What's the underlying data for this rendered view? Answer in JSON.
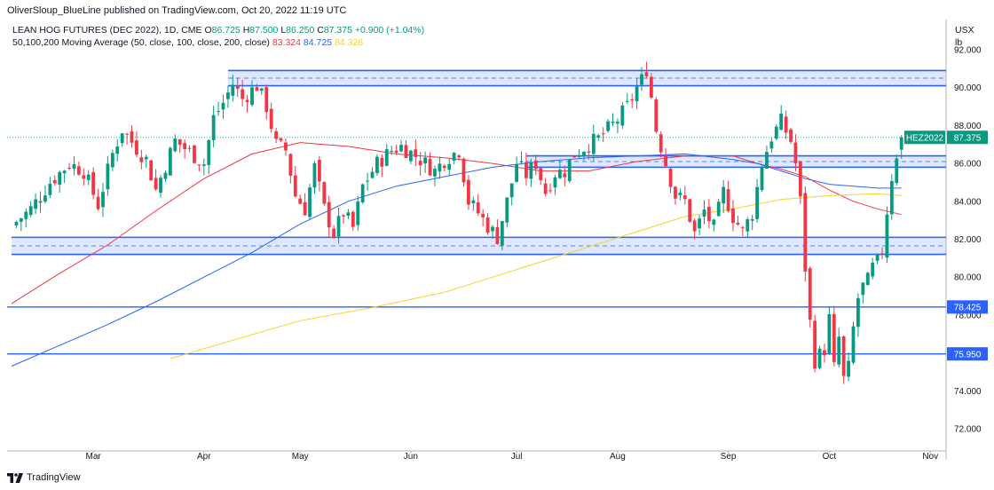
{
  "publisher": "OliverSloup_BlueLine published on TradingView.com, Oct 20, 2022 11:19 UTC",
  "header": {
    "symbol_line": "LEAN HOG FUTURES (DEC 2022), 1D, CME",
    "ohlc": [
      {
        "label": "O",
        "value": "86.725"
      },
      {
        "label": "H",
        "value": "87.500"
      },
      {
        "label": "L",
        "value": "86.250"
      },
      {
        "label": "C",
        "value": "87.375"
      }
    ],
    "change": "+0.900 (+1.04%)",
    "ma_line": "50,100,200 Moving Average (50, close, 100, close, 200, close)",
    "ma50": "83.324",
    "ma100": "84.725",
    "ma200": "84.326"
  },
  "unit": {
    "line1": "USX",
    "line2": "lb"
  },
  "footer": {
    "brand": "TradingView"
  },
  "colors": {
    "up": "#089981",
    "down": "#f23645",
    "ma50": "#f23645",
    "ma100": "#2962ff",
    "ma200": "#f5d32a",
    "zone": "#2962ff"
  },
  "chart_data": {
    "type": "candlestick",
    "title": "LEAN HOG FUTURES (DEC 2022), 1D, CME",
    "y_unit": "USX / lb",
    "ylim": [
      71.2,
      92.6
    ],
    "y_ticks": [
      "72.000",
      "74.000",
      "76.000",
      "78.000",
      "80.000",
      "82.000",
      "84.000",
      "86.000",
      "88.000",
      "90.000",
      "92.000"
    ],
    "x_ticks": [
      {
        "label": "Mar",
        "day": 17
      },
      {
        "label": "Apr",
        "day": 40
      },
      {
        "label": "May",
        "day": 60
      },
      {
        "label": "Jun",
        "day": 83
      },
      {
        "label": "Jul",
        "day": 105
      },
      {
        "label": "Aug",
        "day": 126
      },
      {
        "label": "Sep",
        "day": 149
      },
      {
        "label": "Oct",
        "day": 170
      },
      {
        "label": "Nov",
        "day": 191
      }
    ],
    "close_points": [
      [
        0,
        82.7
      ],
      [
        4,
        83.6
      ],
      [
        8,
        85.0
      ],
      [
        12,
        86.0
      ],
      [
        15,
        85.6
      ],
      [
        18,
        83.8
      ],
      [
        21,
        86.5
      ],
      [
        23,
        87.8
      ],
      [
        26,
        86.8
      ],
      [
        28,
        86.2
      ],
      [
        30,
        84.6
      ],
      [
        34,
        87.2
      ],
      [
        38,
        86.4
      ],
      [
        40,
        86.0
      ],
      [
        42,
        88.4
      ],
      [
        44,
        89.2
      ],
      [
        46,
        90.2
      ],
      [
        48,
        89.4
      ],
      [
        51,
        90.1
      ],
      [
        53,
        89.0
      ],
      [
        55,
        87.0
      ],
      [
        57,
        86.7
      ],
      [
        59,
        84.3
      ],
      [
        61,
        83.6
      ],
      [
        63,
        85.8
      ],
      [
        65,
        83.6
      ],
      [
        67,
        82.3
      ],
      [
        69,
        83.4
      ],
      [
        71,
        82.6
      ],
      [
        73,
        84.8
      ],
      [
        76,
        86.0
      ],
      [
        79,
        86.7
      ],
      [
        81,
        86.9
      ],
      [
        84,
        86.4
      ],
      [
        86,
        86.0
      ],
      [
        88,
        85.6
      ],
      [
        90,
        86.2
      ],
      [
        93,
        86.7
      ],
      [
        95,
        84.0
      ],
      [
        97,
        83.4
      ],
      [
        99,
        82.7
      ],
      [
        101,
        82.1
      ],
      [
        103,
        84.0
      ],
      [
        105,
        86.0
      ],
      [
        107,
        85.4
      ],
      [
        109,
        86.0
      ],
      [
        111,
        84.5
      ],
      [
        113,
        85.5
      ],
      [
        115,
        85.6
      ],
      [
        117,
        86.5
      ],
      [
        120,
        87.0
      ],
      [
        122,
        87.3
      ],
      [
        124,
        87.8
      ],
      [
        126,
        88.3
      ],
      [
        128,
        89.0
      ],
      [
        130,
        90.0
      ],
      [
        131,
        90.4
      ],
      [
        132,
        91.0
      ],
      [
        133,
        89.5
      ],
      [
        134,
        87.8
      ],
      [
        136,
        86.0
      ],
      [
        138,
        84.3
      ],
      [
        140,
        84.0
      ],
      [
        142,
        82.3
      ],
      [
        144,
        83.5
      ],
      [
        146,
        82.6
      ],
      [
        148,
        84.5
      ],
      [
        150,
        83.2
      ],
      [
        152,
        82.4
      ],
      [
        154,
        83.4
      ],
      [
        156,
        86.0
      ],
      [
        158,
        87.4
      ],
      [
        160,
        88.2
      ],
      [
        162,
        87.2
      ],
      [
        163,
        86.0
      ],
      [
        164,
        84.0
      ],
      [
        165,
        80.5
      ],
      [
        166,
        77.6
      ],
      [
        167,
        75.6
      ],
      [
        169,
        76.2
      ],
      [
        170,
        77.8
      ],
      [
        171,
        75.2
      ],
      [
        172,
        76.8
      ],
      [
        173,
        74.6
      ],
      [
        174,
        75.2
      ],
      [
        175,
        77.3
      ],
      [
        176,
        78.9
      ],
      [
        177,
        79.5
      ],
      [
        178,
        79.8
      ],
      [
        179,
        80.5
      ],
      [
        180,
        80.8
      ],
      [
        181,
        81.4
      ],
      [
        182,
        83.5
      ],
      [
        183,
        85.3
      ],
      [
        184,
        86.5
      ],
      [
        185,
        87.4
      ]
    ],
    "ohlc_last": {
      "open": 86.725,
      "high": 87.5,
      "low": 86.25,
      "close": 87.375
    },
    "moving_averages": [
      {
        "name": "MA 50",
        "color": "#f23645",
        "points": [
          [
            0,
            78.6
          ],
          [
            10,
            80.2
          ],
          [
            20,
            81.7
          ],
          [
            30,
            83.5
          ],
          [
            40,
            85.2
          ],
          [
            50,
            86.5
          ],
          [
            60,
            87.1
          ],
          [
            70,
            86.9
          ],
          [
            80,
            86.5
          ],
          [
            90,
            86.3
          ],
          [
            100,
            86.0
          ],
          [
            110,
            85.6
          ],
          [
            120,
            85.6
          ],
          [
            130,
            86.1
          ],
          [
            140,
            86.4
          ],
          [
            150,
            86.4
          ],
          [
            155,
            86.0
          ],
          [
            160,
            85.7
          ],
          [
            165,
            85.3
          ],
          [
            170,
            84.6
          ],
          [
            175,
            84.0
          ],
          [
            180,
            83.6
          ],
          [
            185,
            83.3
          ]
        ]
      },
      {
        "name": "MA 100",
        "color": "#2962ff",
        "points": [
          [
            0,
            75.3
          ],
          [
            10,
            76.4
          ],
          [
            20,
            77.5
          ],
          [
            30,
            78.7
          ],
          [
            40,
            80.0
          ],
          [
            50,
            81.3
          ],
          [
            60,
            82.8
          ],
          [
            70,
            84.0
          ],
          [
            80,
            84.8
          ],
          [
            90,
            85.3
          ],
          [
            100,
            85.8
          ],
          [
            110,
            86.1
          ],
          [
            120,
            86.3
          ],
          [
            130,
            86.4
          ],
          [
            140,
            86.5
          ],
          [
            150,
            86.2
          ],
          [
            155,
            86.0
          ],
          [
            160,
            85.6
          ],
          [
            165,
            85.2
          ],
          [
            170,
            84.9
          ],
          [
            175,
            84.8
          ],
          [
            180,
            84.7
          ],
          [
            185,
            84.7
          ]
        ]
      },
      {
        "name": "MA 200",
        "color": "#f5d32a",
        "points": [
          [
            33,
            75.7
          ],
          [
            45,
            76.6
          ],
          [
            60,
            77.7
          ],
          [
            75,
            78.4
          ],
          [
            90,
            79.2
          ],
          [
            100,
            80.0
          ],
          [
            110,
            80.8
          ],
          [
            120,
            81.6
          ],
          [
            130,
            82.4
          ],
          [
            140,
            83.2
          ],
          [
            150,
            83.6
          ],
          [
            160,
            84.1
          ],
          [
            170,
            84.3
          ],
          [
            180,
            84.4
          ],
          [
            185,
            84.3
          ]
        ]
      }
    ],
    "zones": [
      {
        "from_day": 45,
        "to_day": 195,
        "low": 90.1,
        "high": 90.9
      },
      {
        "from_day": 107,
        "to_day": 195,
        "low": 85.8,
        "high": 86.4
      },
      {
        "from_day": 0,
        "to_day": 195,
        "low": 81.2,
        "high": 82.1
      }
    ],
    "horizontal_levels": [
      {
        "label": "78.425",
        "value": 78.425
      },
      {
        "label": "75.950",
        "value": 75.95
      }
    ],
    "price_tag": {
      "label": "HEZ2022",
      "value": "87.375",
      "y": 87.375
    }
  }
}
